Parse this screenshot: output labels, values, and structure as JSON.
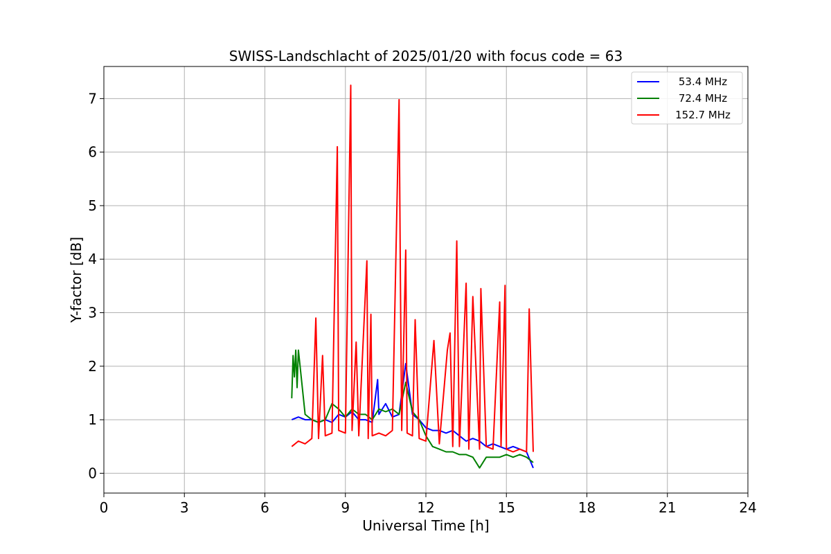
{
  "chart_data": {
    "type": "line",
    "title": "SWISS-Landschlacht of 2025/01/20 with focus code = 63",
    "xlabel": "Universal Time [h]",
    "ylabel": "Y-factor [dB]",
    "xlim": [
      0,
      24
    ],
    "ylim": [
      -0.37,
      7.6
    ],
    "xticks": [
      "0",
      "3",
      "6",
      "9",
      "12",
      "15",
      "18",
      "21",
      "24"
    ],
    "yticks": [
      "0",
      "1",
      "2",
      "3",
      "4",
      "5",
      "6",
      "7"
    ],
    "grid": true,
    "legend_position": "top-right",
    "series": [
      {
        "name": " 53.4 MHz",
        "color": "#0000ff",
        "x": [
          7.0,
          7.25,
          7.5,
          7.75,
          8.0,
          8.25,
          8.5,
          8.75,
          9.0,
          9.25,
          9.5,
          9.75,
          10.0,
          10.2,
          10.25,
          10.5,
          10.75,
          11.0,
          11.25,
          11.5,
          11.75,
          12.0,
          12.25,
          12.5,
          12.75,
          13.0,
          13.25,
          13.5,
          13.75,
          14.0,
          14.25,
          14.5,
          14.75,
          15.0,
          15.25,
          15.5,
          15.75,
          16.0
        ],
        "y": [
          1.0,
          1.05,
          1.0,
          1.0,
          0.95,
          1.0,
          0.95,
          1.1,
          1.05,
          1.15,
          1.0,
          1.0,
          0.95,
          1.75,
          1.1,
          1.3,
          1.05,
          1.1,
          2.05,
          1.1,
          1.0,
          0.85,
          0.8,
          0.8,
          0.75,
          0.8,
          0.7,
          0.6,
          0.65,
          0.6,
          0.5,
          0.55,
          0.5,
          0.45,
          0.5,
          0.45,
          0.4,
          0.1
        ]
      },
      {
        "name": " 72.4 MHz",
        "color": "#008000",
        "x": [
          7.0,
          7.05,
          7.1,
          7.15,
          7.2,
          7.25,
          7.5,
          7.75,
          8.0,
          8.25,
          8.5,
          8.75,
          9.0,
          9.25,
          9.5,
          9.75,
          10.0,
          10.25,
          10.5,
          10.75,
          11.0,
          11.25,
          11.5,
          11.75,
          12.0,
          12.25,
          12.5,
          12.75,
          13.0,
          13.25,
          13.5,
          13.75,
          14.0,
          14.25,
          14.5,
          14.75,
          15.0,
          15.25,
          15.5,
          15.75,
          16.0
        ],
        "y": [
          1.4,
          2.2,
          1.8,
          2.3,
          1.6,
          2.3,
          1.1,
          1.0,
          0.95,
          1.0,
          1.3,
          1.2,
          1.05,
          1.2,
          1.1,
          1.1,
          1.0,
          1.2,
          1.15,
          1.2,
          1.1,
          1.7,
          1.15,
          1.0,
          0.7,
          0.5,
          0.45,
          0.4,
          0.4,
          0.35,
          0.35,
          0.3,
          0.1,
          0.3,
          0.3,
          0.3,
          0.35,
          0.3,
          0.35,
          0.3,
          0.2
        ]
      },
      {
        "name": "152.7 MHz",
        "color": "#ff0000",
        "x": [
          7.0,
          7.25,
          7.5,
          7.75,
          7.9,
          8.0,
          8.15,
          8.25,
          8.5,
          8.7,
          8.75,
          9.0,
          9.2,
          9.25,
          9.4,
          9.5,
          9.8,
          9.85,
          9.95,
          10.0,
          10.25,
          10.5,
          10.75,
          11.0,
          11.05,
          11.1,
          11.25,
          11.3,
          11.5,
          11.6,
          11.75,
          12.0,
          12.3,
          12.5,
          12.8,
          12.9,
          13.0,
          13.15,
          13.25,
          13.5,
          13.6,
          13.75,
          14.0,
          14.05,
          14.25,
          14.5,
          14.75,
          14.8,
          14.95,
          15.0,
          15.25,
          15.5,
          15.75,
          15.85,
          16.0
        ],
        "y": [
          0.5,
          0.6,
          0.55,
          0.65,
          2.9,
          0.65,
          2.2,
          0.7,
          0.75,
          6.1,
          0.8,
          0.75,
          7.25,
          0.8,
          2.45,
          0.7,
          3.97,
          0.65,
          2.97,
          0.7,
          0.75,
          0.7,
          0.8,
          6.98,
          3.6,
          0.8,
          4.17,
          0.75,
          0.7,
          2.87,
          0.65,
          0.6,
          2.48,
          0.55,
          2.3,
          2.62,
          0.5,
          4.34,
          0.5,
          3.55,
          0.45,
          3.3,
          0.45,
          3.45,
          0.5,
          0.45,
          3.2,
          0.5,
          3.51,
          0.45,
          0.4,
          0.45,
          0.4,
          3.07,
          0.4
        ]
      }
    ]
  }
}
